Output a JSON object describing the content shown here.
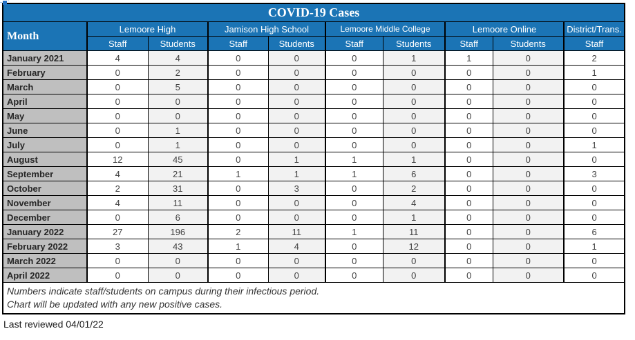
{
  "title": "COVID-19 Cases",
  "table": {
    "month_header": "Month",
    "groups": [
      {
        "label": "Lemoore High",
        "cols": [
          "Staff",
          "Students"
        ]
      },
      {
        "label": "Jamison High School",
        "cols": [
          "Staff",
          "Students"
        ]
      },
      {
        "label": "Lemoore Middle College",
        "cols": [
          "Staff",
          "Students"
        ]
      },
      {
        "label": "Lemoore Online",
        "cols": [
          "Staff",
          "Students"
        ]
      },
      {
        "label": "District/Trans.",
        "cols": [
          "Staff"
        ]
      }
    ],
    "rows": [
      {
        "month": "January 2021",
        "values": [
          4,
          4,
          0,
          0,
          0,
          1,
          1,
          0,
          2
        ]
      },
      {
        "month": "February",
        "values": [
          0,
          2,
          0,
          0,
          0,
          0,
          0,
          0,
          1
        ]
      },
      {
        "month": "March",
        "values": [
          0,
          5,
          0,
          0,
          0,
          0,
          0,
          0,
          0
        ]
      },
      {
        "month": "April",
        "values": [
          0,
          0,
          0,
          0,
          0,
          0,
          0,
          0,
          0
        ]
      },
      {
        "month": "May",
        "values": [
          0,
          0,
          0,
          0,
          0,
          0,
          0,
          0,
          0
        ]
      },
      {
        "month": "June",
        "values": [
          0,
          1,
          0,
          0,
          0,
          0,
          0,
          0,
          0
        ]
      },
      {
        "month": "July",
        "values": [
          0,
          1,
          0,
          0,
          0,
          0,
          0,
          0,
          1
        ]
      },
      {
        "month": "August",
        "values": [
          12,
          45,
          0,
          1,
          1,
          1,
          0,
          0,
          0
        ]
      },
      {
        "month": "September",
        "values": [
          4,
          21,
          1,
          1,
          1,
          6,
          0,
          0,
          3
        ]
      },
      {
        "month": "October",
        "values": [
          2,
          31,
          0,
          3,
          0,
          2,
          0,
          0,
          0
        ]
      },
      {
        "month": "November",
        "values": [
          4,
          11,
          0,
          0,
          0,
          4,
          0,
          0,
          0
        ]
      },
      {
        "month": "December",
        "values": [
          0,
          6,
          0,
          0,
          0,
          1,
          0,
          0,
          0
        ]
      },
      {
        "month": "January 2022",
        "values": [
          27,
          196,
          2,
          11,
          1,
          11,
          0,
          0,
          6
        ]
      },
      {
        "month": "February 2022",
        "values": [
          3,
          43,
          1,
          4,
          0,
          12,
          0,
          0,
          1
        ]
      },
      {
        "month": "March 2022",
        "values": [
          0,
          0,
          0,
          0,
          0,
          0,
          0,
          0,
          0
        ]
      },
      {
        "month": "April 2022",
        "values": [
          0,
          0,
          0,
          0,
          0,
          0,
          0,
          0,
          0
        ]
      }
    ],
    "notes": [
      "Numbers indicate staff/students on campus during their infectious period.",
      "Chart will be updated with any new positive cases."
    ]
  },
  "footer": {
    "last_reviewed": "Last reviewed 04/01/22"
  },
  "colors": {
    "header_blue": "#1b74b5",
    "month_column_gray": "#bfbfbf",
    "students_column_gray": "#f2f2f2",
    "border_black": "#000000"
  }
}
